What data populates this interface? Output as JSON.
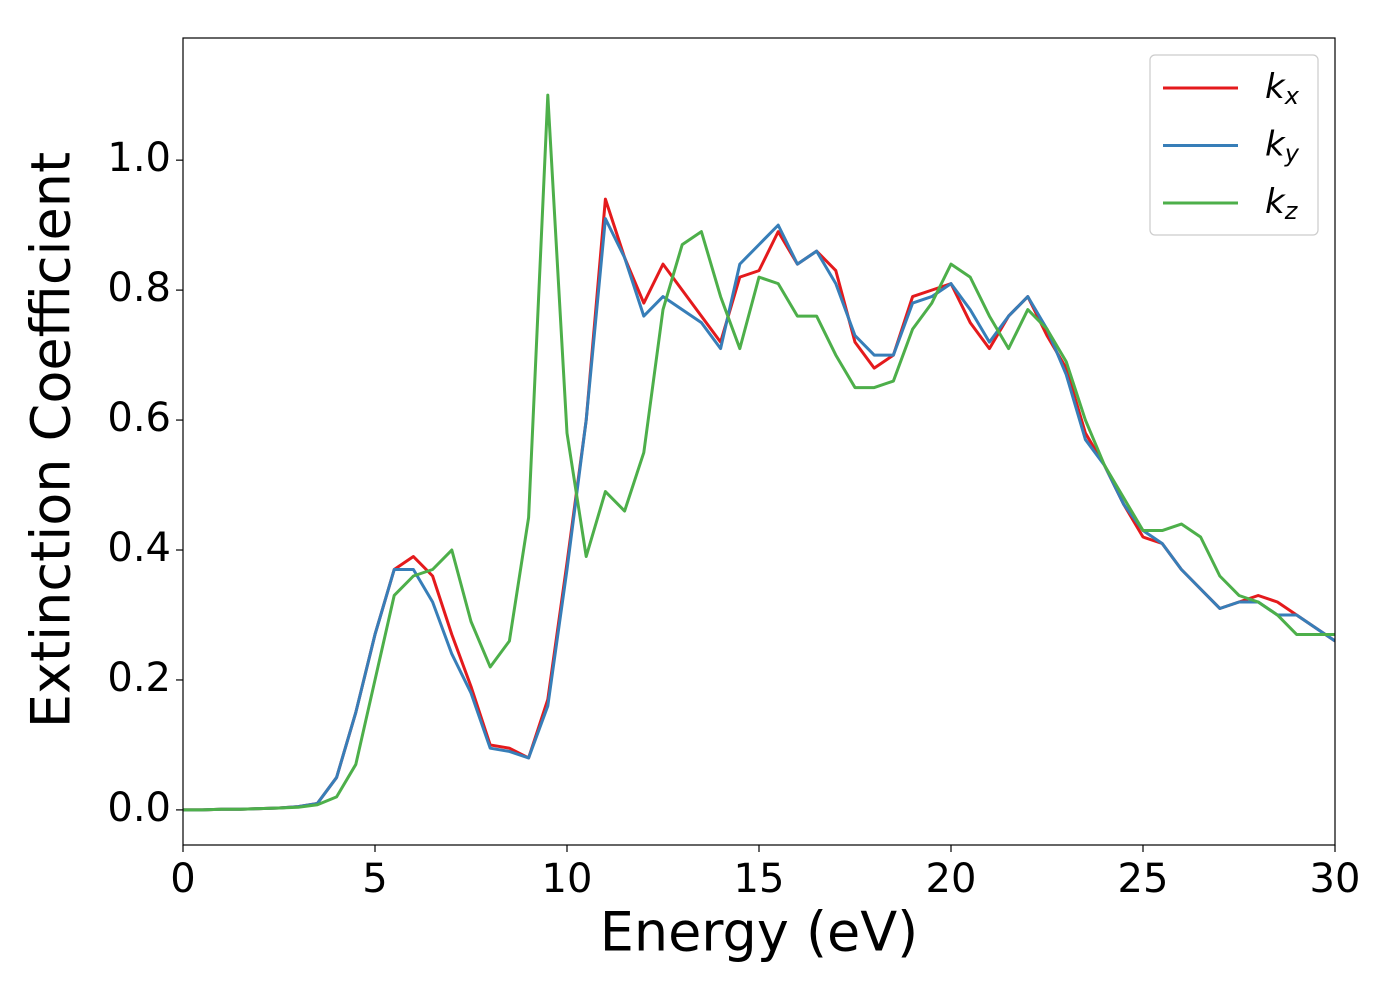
{
  "chart_data": {
    "type": "line",
    "xlabel": "Energy (eV)",
    "ylabel": "Extinction Coefficient",
    "x": [
      0,
      0.5,
      1,
      1.5,
      2,
      2.5,
      3,
      3.5,
      4,
      4.5,
      5,
      5.5,
      6,
      6.5,
      7,
      7.5,
      8,
      8.5,
      9,
      9.5,
      10,
      10.5,
      11,
      11.5,
      12,
      12.5,
      13,
      13.5,
      14,
      14.5,
      15,
      15.5,
      16,
      16.5,
      17,
      17.5,
      18,
      18.5,
      19,
      19.5,
      20,
      20.5,
      21,
      21.5,
      22,
      22.5,
      23,
      23.5,
      24,
      24.5,
      25,
      25.5,
      26,
      26.5,
      27,
      27.5,
      28,
      28.5,
      29,
      29.5,
      30
    ],
    "series": [
      {
        "name": "kx",
        "color": "#e41a1c",
        "values": [
          0,
          0,
          0.001,
          0.001,
          0.002,
          0.003,
          0.005,
          0.01,
          0.05,
          0.15,
          0.27,
          0.37,
          0.39,
          0.36,
          0.27,
          0.19,
          0.1,
          0.095,
          0.08,
          0.17,
          0.38,
          0.6,
          0.94,
          0.85,
          0.78,
          0.84,
          0.8,
          0.76,
          0.72,
          0.82,
          0.83,
          0.89,
          0.84,
          0.86,
          0.83,
          0.72,
          0.68,
          0.7,
          0.79,
          0.8,
          0.81,
          0.75,
          0.71,
          0.76,
          0.79,
          0.73,
          0.68,
          0.58,
          0.53,
          0.47,
          0.42,
          0.41,
          0.37,
          0.34,
          0.31,
          0.32,
          0.33,
          0.32,
          0.3,
          0.28,
          0.26
        ]
      },
      {
        "name": "ky",
        "color": "#377eb8",
        "values": [
          0,
          0,
          0.001,
          0.001,
          0.002,
          0.003,
          0.005,
          0.01,
          0.05,
          0.15,
          0.27,
          0.37,
          0.37,
          0.32,
          0.24,
          0.18,
          0.095,
          0.09,
          0.08,
          0.16,
          0.37,
          0.6,
          0.91,
          0.85,
          0.76,
          0.79,
          0.77,
          0.75,
          0.71,
          0.84,
          0.87,
          0.9,
          0.84,
          0.86,
          0.81,
          0.73,
          0.7,
          0.7,
          0.78,
          0.79,
          0.81,
          0.77,
          0.72,
          0.76,
          0.79,
          0.74,
          0.67,
          0.57,
          0.53,
          0.47,
          0.43,
          0.41,
          0.37,
          0.34,
          0.31,
          0.32,
          0.32,
          0.3,
          0.3,
          0.28,
          0.26
        ]
      },
      {
        "name": "kz",
        "color": "#4daf4a",
        "values": [
          0,
          0,
          0.001,
          0.001,
          0.002,
          0.003,
          0.004,
          0.008,
          0.02,
          0.07,
          0.2,
          0.33,
          0.36,
          0.37,
          0.4,
          0.29,
          0.22,
          0.26,
          0.45,
          1.1,
          0.58,
          0.39,
          0.49,
          0.46,
          0.55,
          0.77,
          0.87,
          0.89,
          0.79,
          0.71,
          0.82,
          0.81,
          0.76,
          0.76,
          0.7,
          0.65,
          0.65,
          0.66,
          0.74,
          0.78,
          0.84,
          0.82,
          0.76,
          0.71,
          0.77,
          0.74,
          0.69,
          0.6,
          0.53,
          0.48,
          0.43,
          0.43,
          0.44,
          0.42,
          0.36,
          0.33,
          0.32,
          0.3,
          0.27,
          0.27,
          0.27
        ]
      }
    ],
    "xlim": [
      0,
      30
    ],
    "xticks": [
      0,
      5,
      10,
      15,
      20,
      25,
      30
    ],
    "ylim": [
      -0.054,
      1.188
    ],
    "yticks": [
      {
        "value": 0,
        "label": "0.0"
      },
      0.2,
      0.4,
      0.6,
      0.8,
      {
        "value": 1,
        "label": "1.0"
      }
    ],
    "grid": false,
    "legend": "upper right"
  }
}
